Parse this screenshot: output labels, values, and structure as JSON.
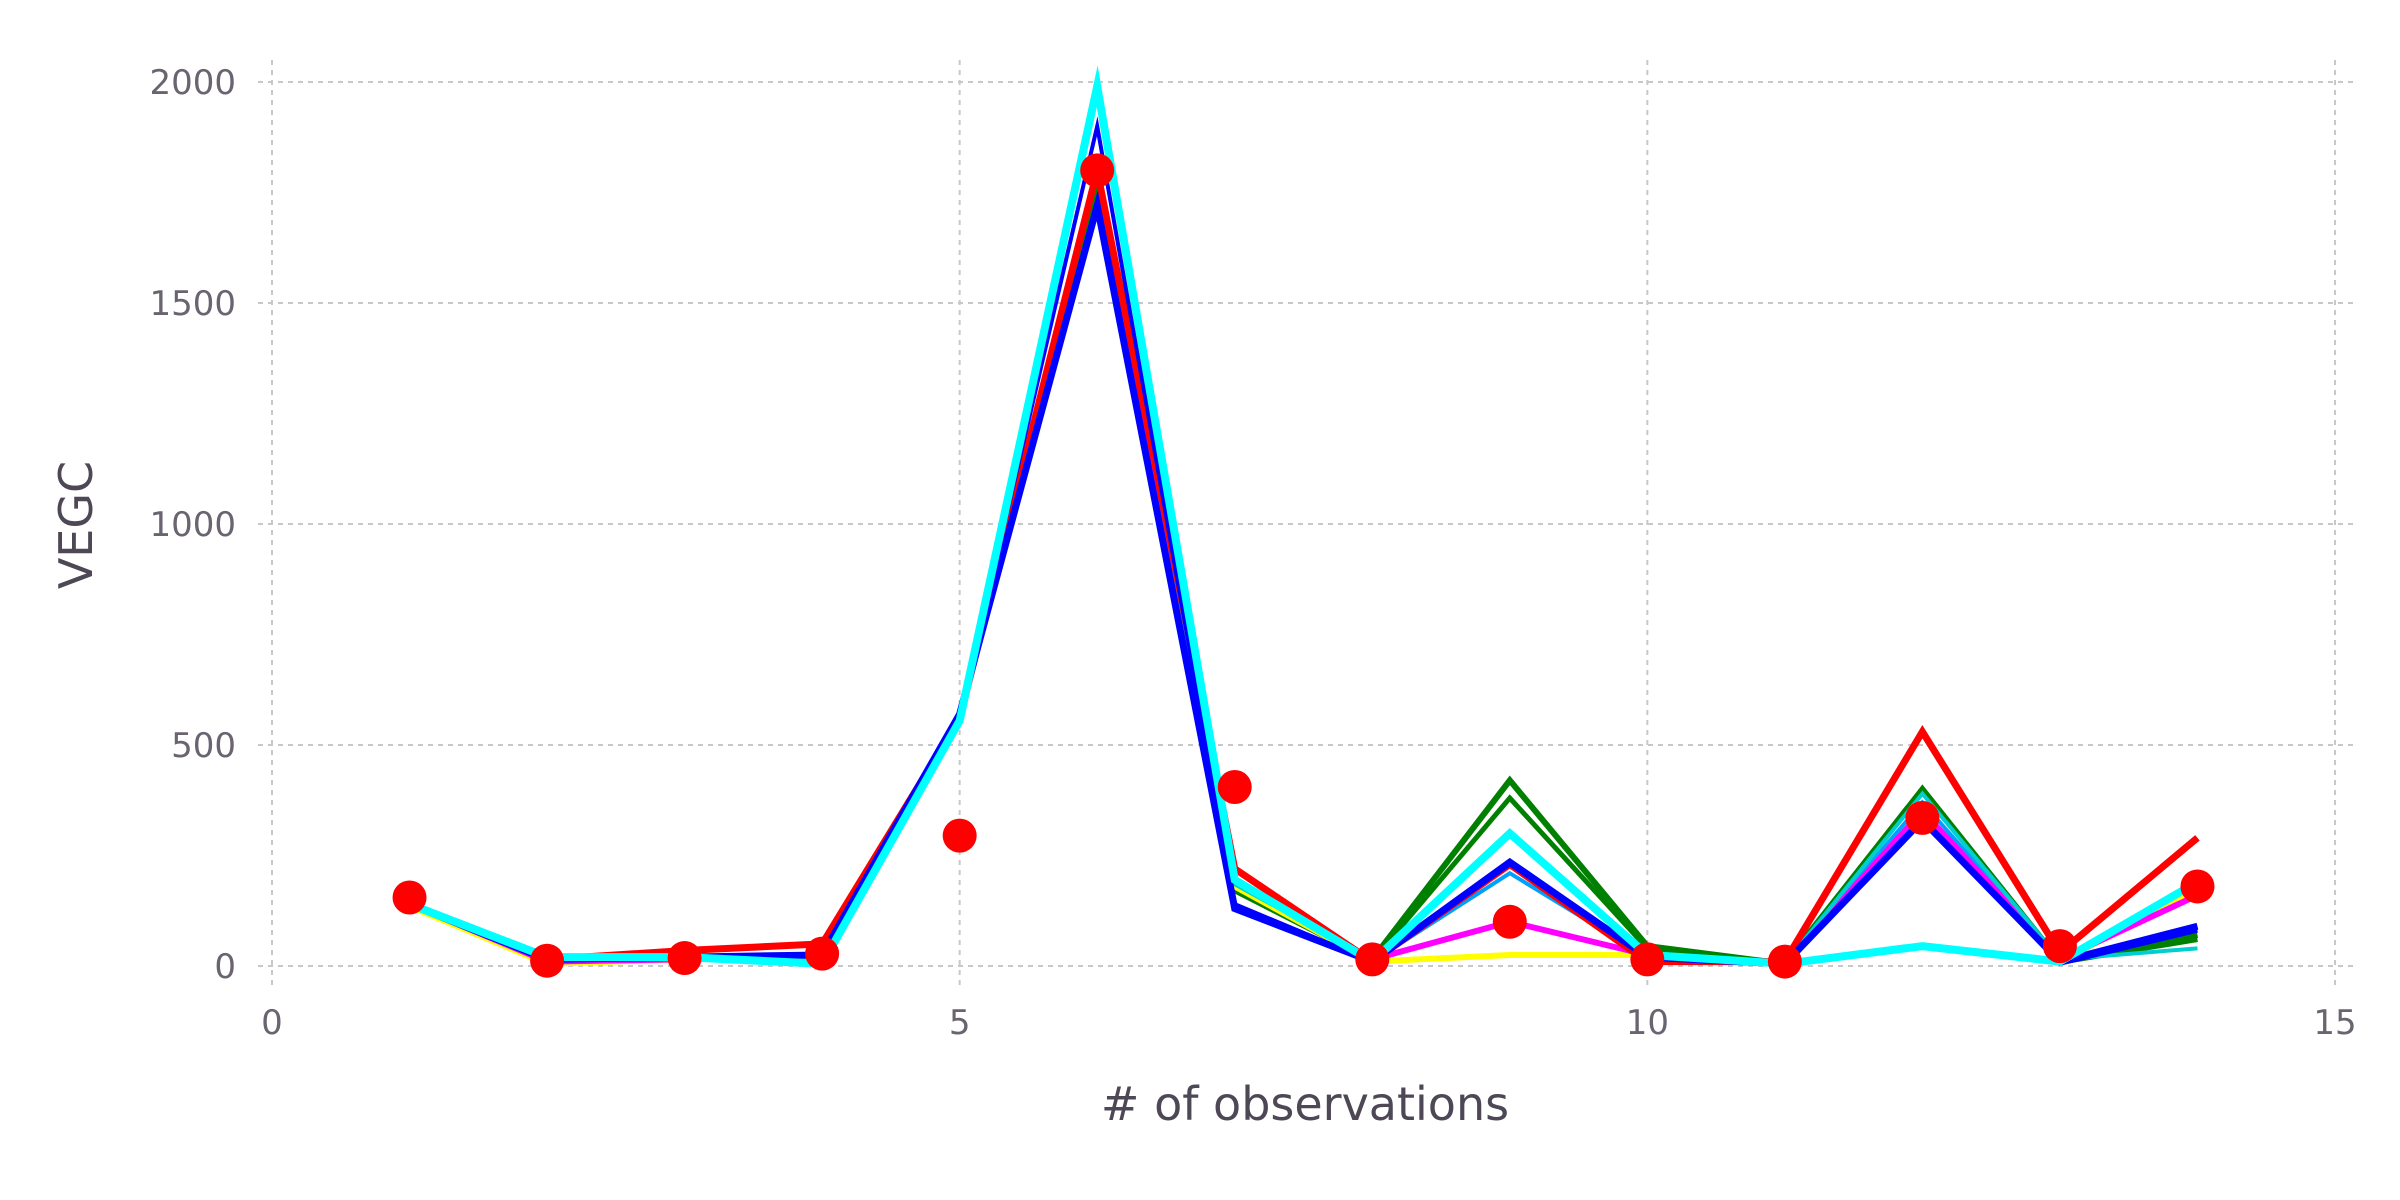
{
  "chart_data": {
    "type": "line",
    "xlabel": "# of observations",
    "ylabel": "VEGC",
    "xlim": [
      0,
      15
    ],
    "ylim": [
      0,
      2000
    ],
    "xticks": [
      0,
      5,
      10,
      15
    ],
    "yticks": [
      0,
      500,
      1000,
      1500,
      2000
    ],
    "grid": true,
    "legend": "none",
    "x": [
      1,
      2,
      3,
      4,
      5,
      6,
      7,
      8,
      9,
      10,
      11,
      12,
      13,
      14
    ],
    "series": [
      {
        "color": "#008000",
        "width": 6,
        "values": [
          140,
          15,
          20,
          25,
          560,
          1780,
          175,
          15,
          420,
          45,
          5,
          400,
          10,
          70
        ]
      },
      {
        "color": "#008000",
        "width": 5,
        "values": [
          140,
          12,
          18,
          22,
          560,
          1770,
          170,
          12,
          380,
          40,
          5,
          350,
          8,
          60
        ]
      },
      {
        "color": "#ffff00",
        "width": 6,
        "values": [
          135,
          5,
          15,
          20,
          560,
          1800,
          180,
          10,
          25,
          25,
          5,
          340,
          10,
          170
        ]
      },
      {
        "color": "#00a0ff",
        "width": 4,
        "values": [
          140,
          10,
          15,
          20,
          560,
          1800,
          190,
          10,
          210,
          20,
          5,
          370,
          15,
          190
        ]
      },
      {
        "color": "#ff00ff",
        "width": 6,
        "values": [
          140,
          10,
          15,
          20,
          560,
          1800,
          190,
          15,
          100,
          25,
          5,
          350,
          15,
          160
        ]
      },
      {
        "color": "#00ced1",
        "width": 4,
        "values": [
          140,
          15,
          20,
          15,
          560,
          1800,
          185,
          15,
          300,
          30,
          5,
          390,
          15,
          40
        ]
      },
      {
        "color": "#ff0000",
        "width": 7,
        "values": [
          140,
          15,
          35,
          50,
          560,
          1800,
          220,
          10,
          230,
          10,
          10,
          530,
          30,
          290
        ]
      },
      {
        "color": "#0000ff",
        "width": 7,
        "values": [
          140,
          15,
          20,
          25,
          570,
          1720,
          130,
          10,
          235,
          20,
          5,
          330,
          10,
          90
        ]
      },
      {
        "color": "#0000ff",
        "width": 4,
        "values": [
          140,
          15,
          20,
          25,
          565,
          1900,
          140,
          10,
          230,
          20,
          5,
          330,
          5,
          80
        ]
      },
      {
        "color": "#00ffff",
        "width": 8,
        "values": [
          140,
          20,
          20,
          5,
          555,
          1990,
          195,
          10,
          300,
          25,
          5,
          45,
          10,
          190
        ]
      }
    ],
    "observations": {
      "color": "#ff0000",
      "values": [
        155,
        12,
        18,
        28,
        295,
        1800,
        405,
        15,
        100,
        15,
        10,
        335,
        45,
        180
      ]
    }
  }
}
